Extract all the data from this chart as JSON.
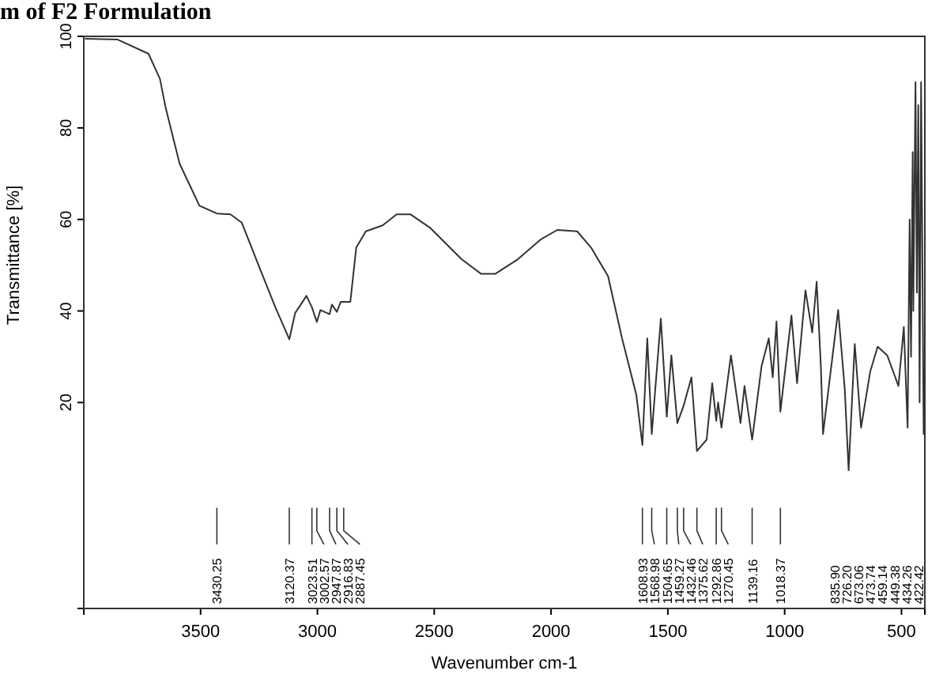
{
  "chart_data": {
    "type": "line",
    "title": "m of F2 Formulation",
    "xlabel": "Wavenumber cm-1",
    "ylabel": "Transmittance [%]",
    "xlim": [
      4000,
      400
    ],
    "ylim": [
      -25,
      100
    ],
    "xticks": [
      3500,
      3000,
      2500,
      2000,
      1500,
      1000,
      500
    ],
    "yticks": [
      20,
      40,
      60,
      80,
      100
    ],
    "grid": false,
    "marker": "none",
    "line_style": "solid",
    "series": [
      {
        "color": "#333333",
        "x": [
          3995,
          3855,
          3723,
          3674,
          3650,
          3590,
          3505,
          3430.25,
          3372,
          3324,
          3252,
          3180,
          3143,
          3120.37,
          3095,
          3071,
          3047,
          3023.51,
          3002.57,
          2987,
          2947.87,
          2938,
          2916.83,
          2900,
          2887.45,
          2859,
          2834,
          2793,
          2721,
          2661,
          2601,
          2516,
          2383,
          2299,
          2239,
          2142,
          2045,
          1973,
          1888,
          1828,
          1756,
          1696,
          1635,
          1608.93,
          1588,
          1568.98,
          1530,
          1504.65,
          1485,
          1459.27,
          1432.46,
          1399,
          1375.62,
          1334,
          1310,
          1292.86,
          1285,
          1270.45,
          1230,
          1189,
          1172,
          1139.16,
          1099,
          1068,
          1051,
          1035,
          1018.37,
          971,
          947,
          911,
          882,
          863,
          845,
          835.9,
          771,
          743,
          726.2,
          700,
          673.06,
          634,
          602,
          561,
          513,
          490,
          473.74,
          465,
          459.14,
          452,
          449.38,
          440,
          434.26,
          428,
          422.42,
          416,
          405
        ],
        "values": [
          99.5,
          99.3,
          96.2,
          90.7,
          84.5,
          72.2,
          63,
          61.3,
          61.1,
          59.3,
          50,
          40.8,
          36.5,
          33.8,
          39.6,
          41.4,
          43.3,
          40.8,
          37.6,
          40.2,
          39.3,
          41.4,
          39.8,
          42,
          42,
          42,
          53.8,
          57.4,
          58.7,
          61.1,
          61.1,
          58.1,
          51.3,
          48.1,
          48.1,
          51.3,
          55.6,
          57.7,
          57.4,
          53.8,
          47.6,
          34,
          21.7,
          10.7,
          34,
          13.1,
          38.3,
          16.9,
          30.3,
          15.5,
          19.3,
          25.5,
          9.4,
          11.9,
          24.2,
          16,
          20,
          14.5,
          30.3,
          15.5,
          23.6,
          11.9,
          27.9,
          34,
          25.5,
          37.7,
          18,
          39,
          24.2,
          44.5,
          35.3,
          46.4,
          27.9,
          13.1,
          40.2,
          23.1,
          5.2,
          32.8,
          14.5,
          26.7,
          32.2,
          30.3,
          23.6,
          36.5,
          14.5,
          60,
          30,
          74.7,
          40,
          90,
          44,
          85,
          20,
          90,
          13
        ]
      }
    ],
    "annotations": [
      {
        "text": "3430.25",
        "x": 3430.25
      },
      {
        "text": "3120.37",
        "x": 3120.37
      },
      {
        "text": "3023.51",
        "x": 3023.51
      },
      {
        "text": "3002.57",
        "x": 3002.57
      },
      {
        "text": "2947.87",
        "x": 2947.87
      },
      {
        "text": "2916.83",
        "x": 2916.83
      },
      {
        "text": "2887.45",
        "x": 2887.45
      },
      {
        "text": "1608.93",
        "x": 1608.93
      },
      {
        "text": "1568.98",
        "x": 1568.98
      },
      {
        "text": "1504.65",
        "x": 1504.65
      },
      {
        "text": "1459.27",
        "x": 1459.27
      },
      {
        "text": "1432.46",
        "x": 1432.46
      },
      {
        "text": "1375.62",
        "x": 1375.62
      },
      {
        "text": "1292.86",
        "x": 1292.86
      },
      {
        "text": "1270.45",
        "x": 1270.45
      },
      {
        "text": "1139.16",
        "x": 1139.16
      },
      {
        "text": "1018.37",
        "x": 1018.37
      },
      "835.90",
      "726.20",
      "673.06",
      "473.74",
      "459.14",
      "449.38",
      "434.26",
      "422.42"
    ]
  }
}
